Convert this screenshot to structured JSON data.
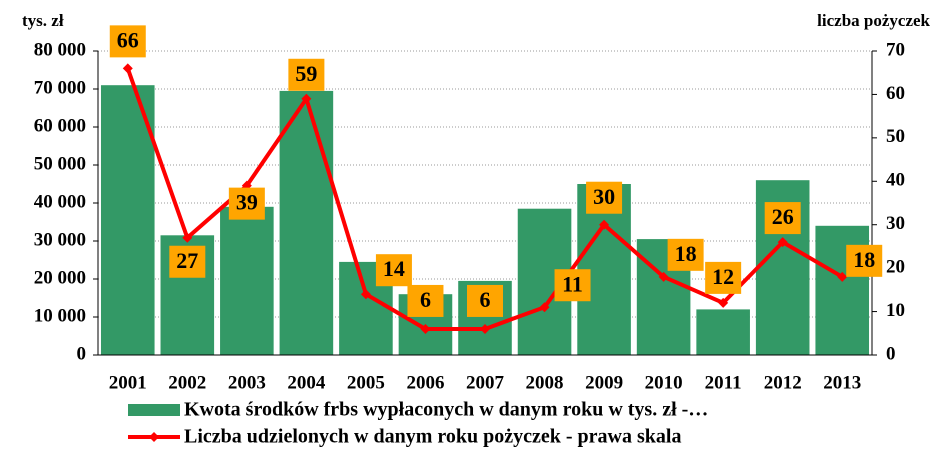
{
  "chart_data": {
    "type": "combo",
    "y_label": "tys. zł",
    "y2_label": "liczba pożyczek",
    "categories": [
      "2001",
      "2002",
      "2003",
      "2004",
      "2005",
      "2006",
      "2007",
      "2008",
      "2009",
      "2010",
      "2011",
      "2012",
      "2013"
    ],
    "series": [
      {
        "name": "Kwota środków frbs wypłaconych w danym roku w tys. zł -…",
        "type": "bar",
        "color": "#339966",
        "values": [
          71000,
          31500,
          39000,
          69500,
          24500,
          16000,
          19500,
          38500,
          45000,
          30500,
          12000,
          46000,
          34000
        ]
      },
      {
        "name": "Liczba udzielonych w danym roku pożyczek - prawa skala",
        "type": "line",
        "axis": "y2",
        "color": "#ff0000",
        "label_color": "#ffa500",
        "values": [
          66,
          27,
          39,
          59,
          14,
          6,
          6,
          11,
          30,
          18,
          12,
          26,
          18
        ]
      }
    ],
    "ylim": [
      0,
      80000
    ],
    "yticks": [
      0,
      {
        "value": 10000,
        "label": "10 000"
      },
      {
        "value": 20000,
        "label": "20 000"
      },
      {
        "value": 30000,
        "label": "30 000"
      },
      {
        "value": 40000,
        "label": "40 000"
      },
      {
        "value": 50000,
        "label": "50 000"
      },
      {
        "value": 60000,
        "label": "60 000"
      },
      {
        "value": 70000,
        "label": "70 000"
      },
      {
        "value": 80000,
        "label": "80 000"
      }
    ],
    "y2lim": [
      0,
      70
    ],
    "y2ticks": [
      0,
      10,
      20,
      30,
      40,
      50,
      60,
      70
    ],
    "grid": true,
    "legend": "bottom"
  }
}
